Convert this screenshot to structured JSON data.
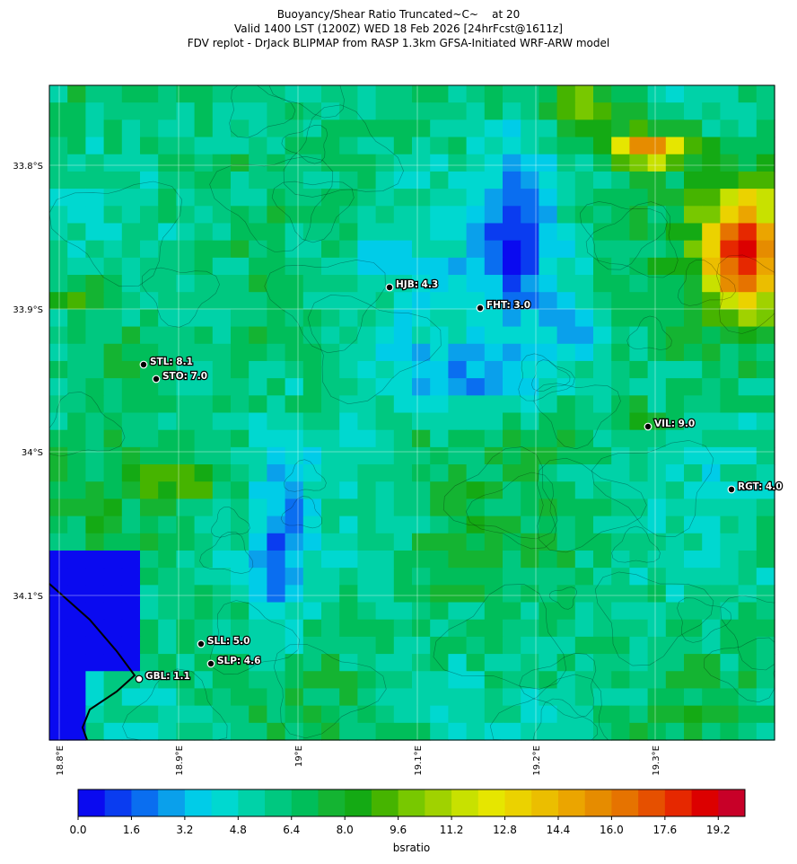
{
  "title": [
    "Buoyancy/Shear Ratio Truncated~C~    at 20",
    "Valid 1400 LST (1200Z) WED 18 Feb 2026 [24hrFcst@1611z]",
    "FDV replot - DrJack BLIPMAP from RASP 1.3km GFSA-Initiated WRF-ARW model"
  ],
  "map": {
    "lat_labels": [
      "33.8°S",
      "33.9°S",
      "34°S",
      "34.1°S"
    ],
    "lon_labels": [
      "18.8°E",
      "18.9°E",
      "19°E",
      "19.1°E",
      "19.2°E",
      "19.3°E"
    ],
    "stations": [
      "HJB: 4.3",
      "FHT: 3.0",
      "STL: 8.1",
      "STO: 7.0",
      "VIL: 9.0",
      "RGT: 4.0",
      "SLL: 5.0",
      "SLP: 4.6",
      "GBL: 1.1"
    ]
  },
  "colorbar": {
    "label": "bsratio",
    "range": [
      0,
      20
    ],
    "colors": [
      "#0a0af0",
      "#0a3cf0",
      "#0a6ef0",
      "#0aa0eb",
      "#00cce8",
      "#00d8d0",
      "#00d2a8",
      "#00c880",
      "#00be5a",
      "#14b432",
      "#14aa14",
      "#46b400",
      "#78c800",
      "#a0d200",
      "#c8e100",
      "#e6e600",
      "#ebd200",
      "#ebbe00",
      "#eba500",
      "#e68c00",
      "#e67300",
      "#e65000",
      "#e62800",
      "#dc0000",
      "#c80028"
    ],
    "ticks": [
      {
        "value": 0,
        "label": "0.0"
      },
      1.6,
      3.2,
      4.8,
      6.4,
      {
        "value": 8,
        "label": "8.0"
      },
      9.6,
      11.2,
      12.8,
      14.4,
      {
        "value": 16,
        "label": "16.0"
      },
      17.6,
      19.2
    ]
  }
}
